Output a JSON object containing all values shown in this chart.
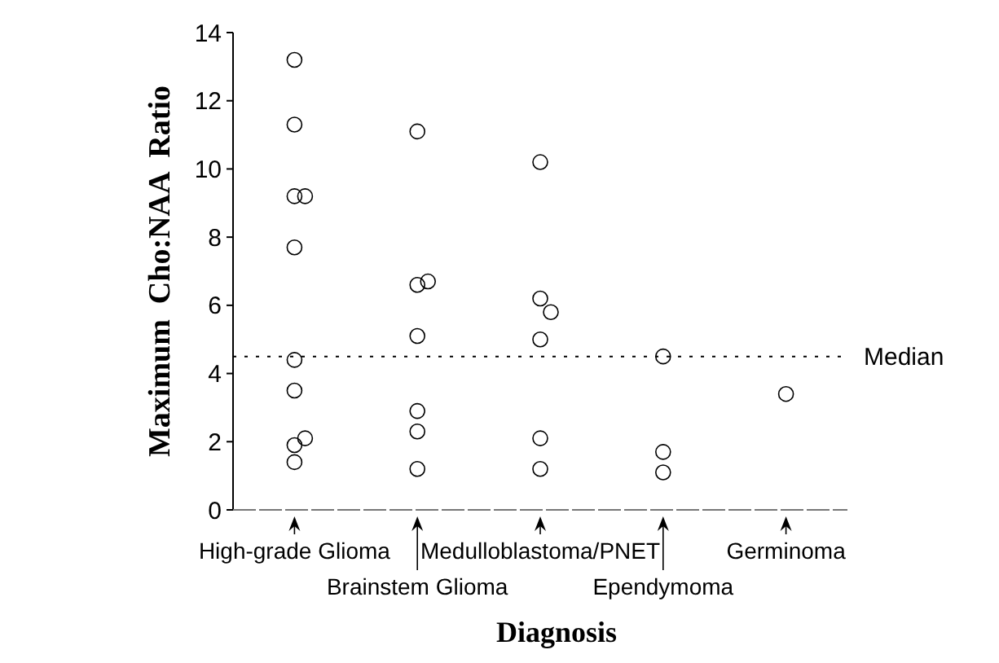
{
  "chart_data": {
    "type": "scatter",
    "xlabel": "Diagnosis",
    "ylabel": "Maximum  Cho:NAA  Ratio",
    "categories": [
      "High-grade Glioma",
      "Brainstem Glioma",
      "Medulloblastoma/PNET",
      "Ependymoma",
      "Germinoma"
    ],
    "series": [
      {
        "color": "#000000",
        "marker": "circle",
        "x": [
          "High-grade Glioma",
          "High-grade Glioma",
          "High-grade Glioma",
          "High-grade Glioma",
          "High-grade Glioma",
          "High-grade Glioma",
          "High-grade Glioma",
          "High-grade Glioma",
          "High-grade Glioma",
          "High-grade Glioma",
          "Brainstem Glioma",
          "Brainstem Glioma",
          "Brainstem Glioma",
          "Brainstem Glioma",
          "Brainstem Glioma",
          "Brainstem Glioma",
          "Brainstem Glioma",
          "Medulloblastoma/PNET",
          "Medulloblastoma/PNET",
          "Medulloblastoma/PNET",
          "Medulloblastoma/PNET",
          "Medulloblastoma/PNET",
          "Medulloblastoma/PNET",
          "Ependymoma",
          "Ependymoma",
          "Ependymoma",
          "Germinoma"
        ],
        "values": [
          13.2,
          11.3,
          9.2,
          9.2,
          7.7,
          4.4,
          3.5,
          1.9,
          2.1,
          1.4,
          11.1,
          6.6,
          6.7,
          5.1,
          2.9,
          2.3,
          1.2,
          10.2,
          6.2,
          5.8,
          5.0,
          2.1,
          1.2,
          4.5,
          1.7,
          1.1,
          3.4
        ]
      }
    ],
    "ylim": [
      0,
      14
    ],
    "yticks": [
      0,
      2,
      4,
      6,
      8,
      10,
      12,
      14
    ],
    "ref_lines": [
      {
        "axis": "y",
        "value": 4.5,
        "label": "Median",
        "line_style": "dotted",
        "color": "#000000"
      }
    ]
  }
}
